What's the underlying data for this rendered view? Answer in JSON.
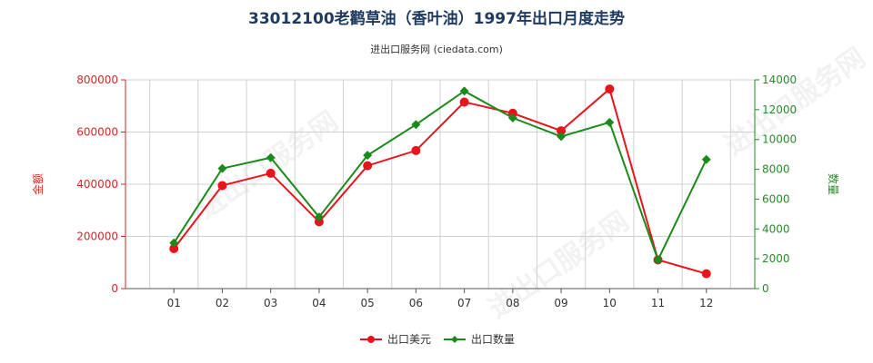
{
  "chart_data": {
    "type": "line",
    "title": "33012100老鹳草油（香叶油）1997年出口月度走势",
    "subtitle": "进出口服务网 (ciedata.com)",
    "watermark": "进出口服务网",
    "categories": [
      "01",
      "02",
      "03",
      "04",
      "05",
      "06",
      "07",
      "08",
      "09",
      "10",
      "11",
      "12"
    ],
    "left_axis": {
      "label": "金额",
      "min": 0,
      "max": 800000,
      "ticks": [
        "0",
        "200000",
        "400000",
        "600000",
        "800000"
      ]
    },
    "right_axis": {
      "label": "数量",
      "min": 0,
      "max": 14000,
      "ticks": [
        "0",
        "2000",
        "4000",
        "6000",
        "8000",
        "10000",
        "12000",
        "14000"
      ]
    },
    "series": [
      {
        "name": "出口美元",
        "axis": "left",
        "color": "#e8141b",
        "values": [
          153000,
          395000,
          442000,
          256000,
          471000,
          529000,
          715000,
          672000,
          605000,
          765000,
          110000,
          57000
        ]
      },
      {
        "name": "出口数量",
        "axis": "right",
        "color": "#1a8a1a",
        "values": [
          3060,
          8060,
          8780,
          4800,
          8940,
          11000,
          13250,
          11450,
          10200,
          11150,
          1920,
          8660
        ]
      }
    ],
    "grid": true,
    "legend_position": "bottom-center"
  }
}
